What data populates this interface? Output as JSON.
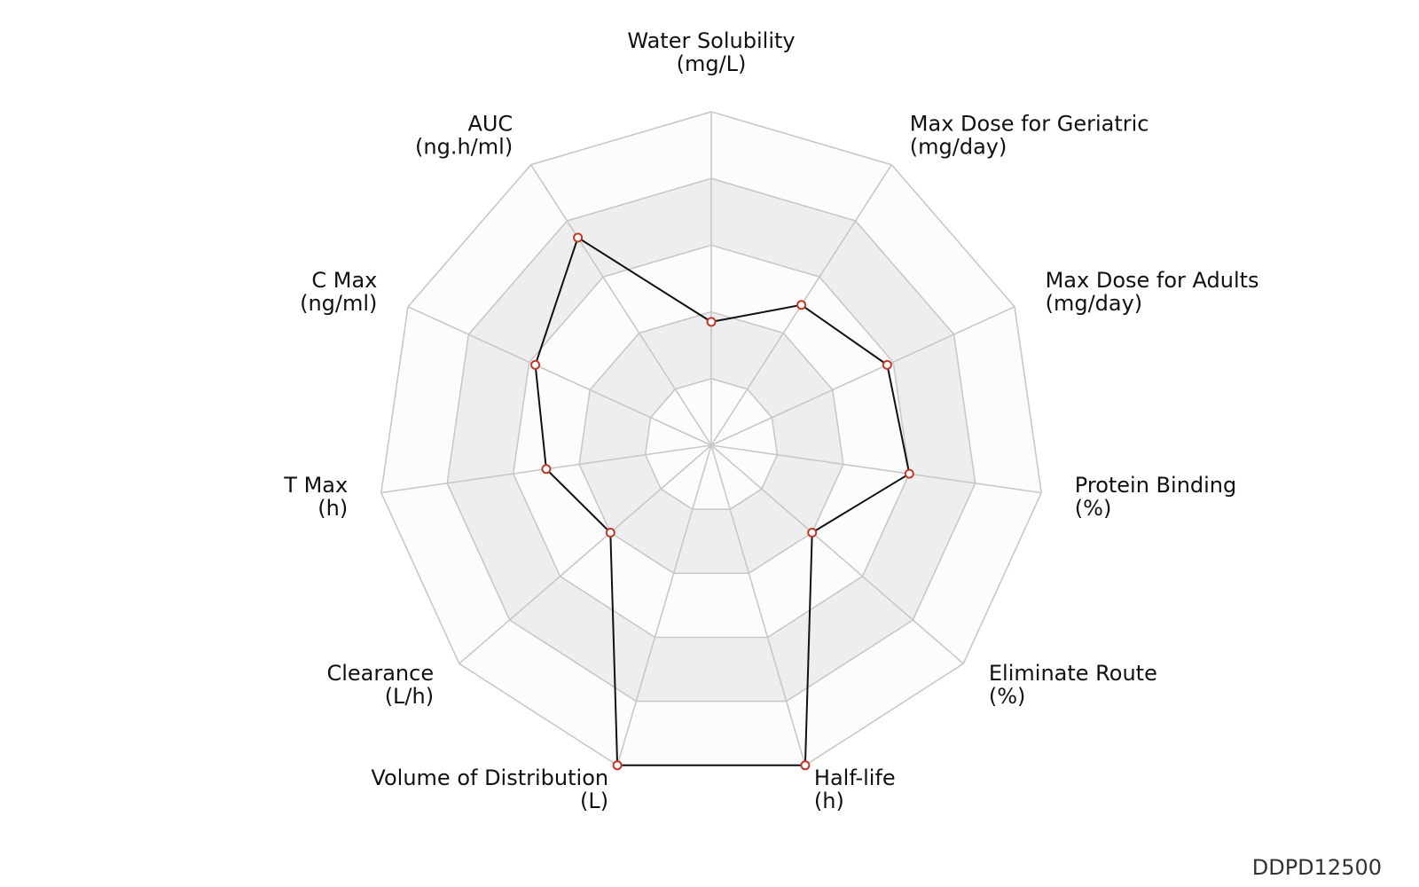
{
  "chart_data": {
    "type": "radar",
    "axes": [
      {
        "name": "Water Solubility",
        "unit": "(mg/L)",
        "value": 0.37
      },
      {
        "name": "Max Dose for Geriatric",
        "unit": "(mg/day)",
        "value": 0.5
      },
      {
        "name": "Max Dose for Adults",
        "unit": "(mg/day)",
        "value": 0.58
      },
      {
        "name": "Protein Binding",
        "unit": "(%)",
        "value": 0.6
      },
      {
        "name": "Eliminate Route",
        "unit": "(%)",
        "value": 0.4
      },
      {
        "name": "Half-life",
        "unit": "(h)",
        "value": 1.0
      },
      {
        "name": "Volume of Distribution",
        "unit": "(L)",
        "value": 1.0
      },
      {
        "name": "Clearance",
        "unit": "(L/h)",
        "value": 0.4
      },
      {
        "name": "T Max",
        "unit": "(h)",
        "value": 0.5
      },
      {
        "name": "C Max",
        "unit": "(ng/ml)",
        "value": 0.58
      },
      {
        "name": "AUC",
        "unit": "(ng.h/ml)",
        "value": 0.74
      }
    ],
    "rings": [
      0.2,
      0.4,
      0.6,
      0.8,
      1.0
    ],
    "range": [
      0,
      1
    ],
    "colors": {
      "line": "#111111",
      "marker_stroke": "#c0392b",
      "marker_fill": "#ffffff",
      "grid": "#c8c8c8",
      "band_shaded": "#eeeeee",
      "band_light": "#fcfcfc"
    }
  },
  "footer": {
    "id": "DDPD12500"
  }
}
